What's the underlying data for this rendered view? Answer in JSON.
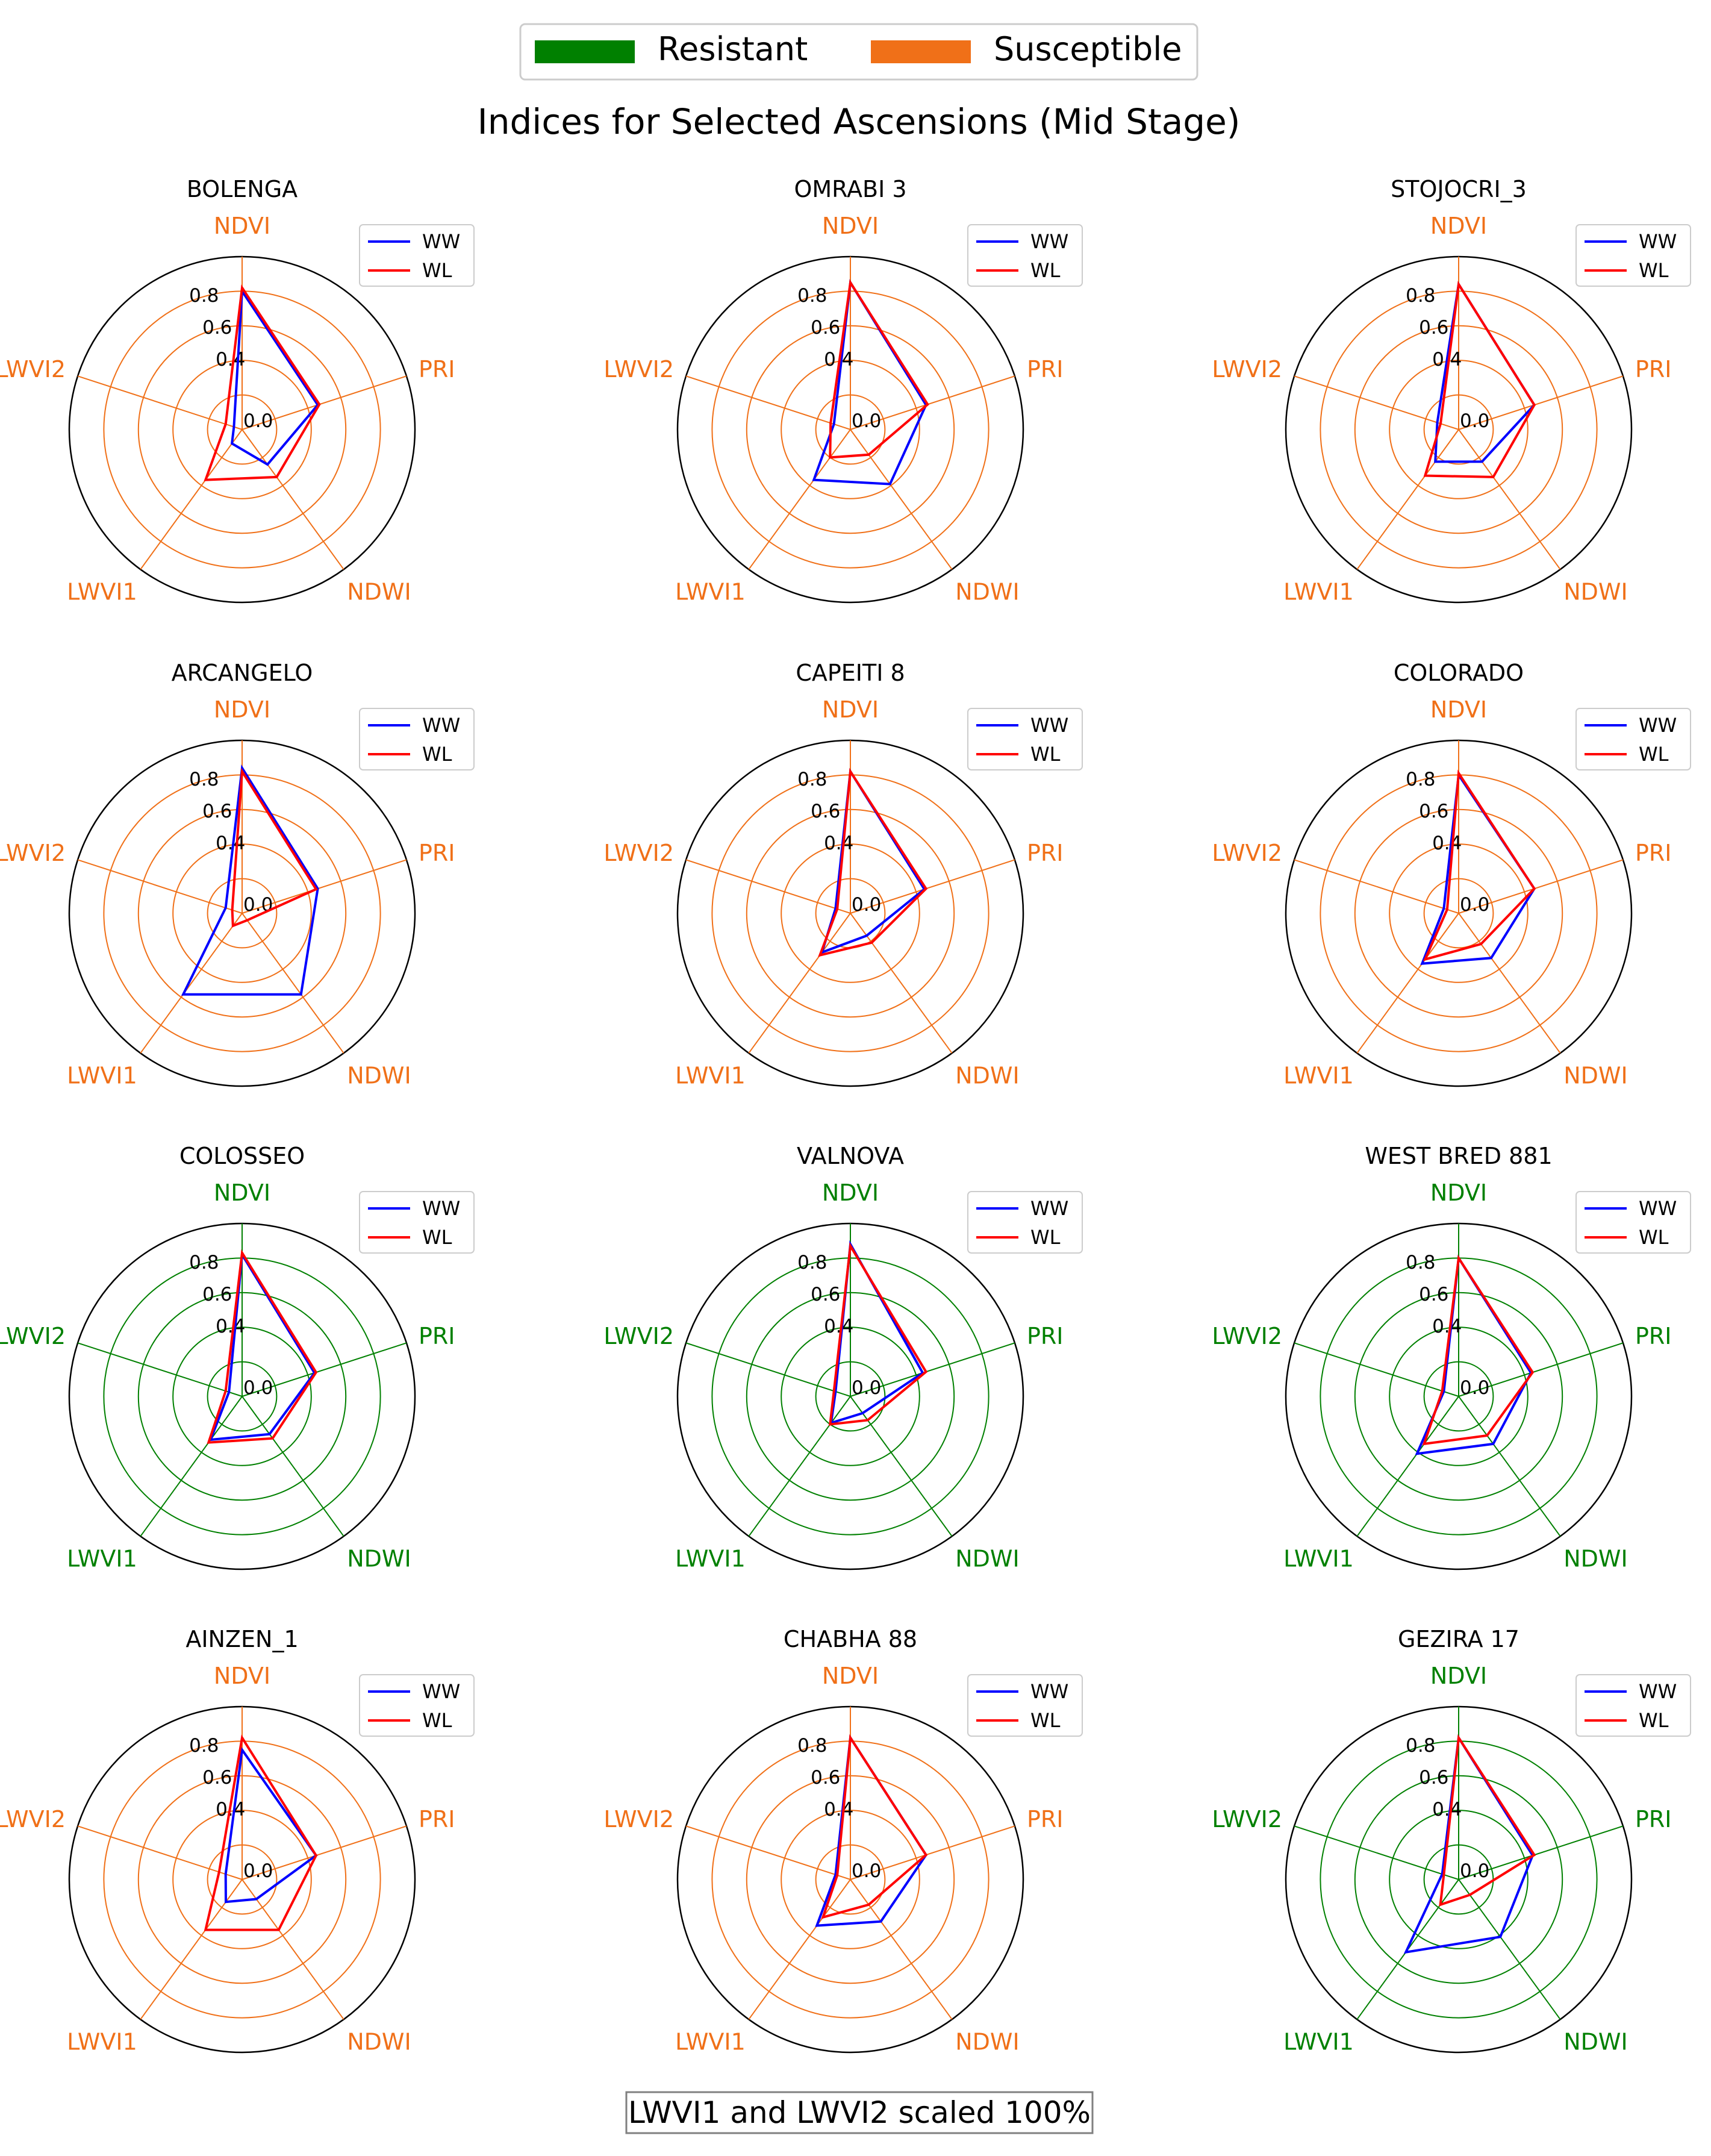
{
  "figure": {
    "title": "Indices for Selected Ascensions (Mid Stage)",
    "footnote": "LWVI1 and LWVI2 scaled 100%"
  },
  "legend": {
    "resistant_label": "Resistant",
    "susceptible_label": "Susceptible",
    "resistant_color": "#008000",
    "susceptible_color": "#f07018"
  },
  "series_style": {
    "WW": "#0000ff",
    "WL": "#ff0000"
  },
  "chart_data": {
    "type": "radar",
    "axes": [
      "NDVI",
      "PRI",
      "NDWI",
      "LWVI1",
      "LWVI2"
    ],
    "rlim": [
      0,
      1
    ],
    "radial_ticks": [
      0.0,
      0.4,
      0.6,
      0.8
    ],
    "rings": [
      0.2,
      0.4,
      0.6,
      0.8,
      1.0
    ],
    "series_names": [
      "WW",
      "WL"
    ],
    "panels": [
      {
        "title": "BOLENGA",
        "category": "susceptible",
        "series": [
          {
            "name": "WW",
            "values": [
              0.8,
              0.46,
              0.25,
              0.1,
              0.05
            ]
          },
          {
            "name": "WL",
            "values": [
              0.82,
              0.47,
              0.34,
              0.36,
              0.1
            ]
          }
        ]
      },
      {
        "title": "OMRABI 3",
        "category": "susceptible",
        "series": [
          {
            "name": "WW",
            "values": [
              0.85,
              0.46,
              0.39,
              0.36,
              0.1
            ]
          },
          {
            "name": "WL",
            "values": [
              0.85,
              0.47,
              0.18,
              0.2,
              0.12
            ]
          }
        ]
      },
      {
        "title": "STOJOCRI_3",
        "category": "susceptible",
        "series": [
          {
            "name": "WW",
            "values": [
              0.84,
              0.46,
              0.23,
              0.23,
              0.13
            ]
          },
          {
            "name": "WL",
            "values": [
              0.84,
              0.46,
              0.34,
              0.33,
              0.11
            ]
          }
        ]
      },
      {
        "title": "ARCANGELO",
        "category": "susceptible",
        "series": [
          {
            "name": "WW",
            "values": [
              0.84,
              0.46,
              0.58,
              0.58,
              0.1
            ]
          },
          {
            "name": "WL",
            "values": [
              0.82,
              0.45,
              0.05,
              0.09,
              0.06
            ]
          }
        ]
      },
      {
        "title": "CAPEITI 8",
        "category": "susceptible",
        "series": [
          {
            "name": "WW",
            "values": [
              0.82,
              0.45,
              0.16,
              0.28,
              0.09
            ]
          },
          {
            "name": "WL",
            "values": [
              0.82,
              0.46,
              0.21,
              0.3,
              0.08
            ]
          }
        ]
      },
      {
        "title": "COLORADO",
        "category": "susceptible",
        "series": [
          {
            "name": "WW",
            "values": [
              0.8,
              0.46,
              0.32,
              0.36,
              0.09
            ]
          },
          {
            "name": "WL",
            "values": [
              0.81,
              0.46,
              0.22,
              0.33,
              0.07
            ]
          }
        ]
      },
      {
        "title": "COLOSSEO",
        "category": "resistant",
        "series": [
          {
            "name": "WW",
            "values": [
              0.82,
              0.44,
              0.27,
              0.31,
              0.08
            ]
          },
          {
            "name": "WL",
            "values": [
              0.83,
              0.45,
              0.3,
              0.33,
              0.1
            ]
          }
        ]
      },
      {
        "title": "VALNOVA",
        "category": "resistant",
        "series": [
          {
            "name": "WW",
            "values": [
              0.88,
              0.44,
              0.12,
              0.19,
              0.09
            ]
          },
          {
            "name": "WL",
            "values": [
              0.87,
              0.46,
              0.17,
              0.2,
              0.1
            ]
          }
        ]
      },
      {
        "title": "WEST BRED 881",
        "category": "resistant",
        "series": [
          {
            "name": "WW",
            "values": [
              0.8,
              0.44,
              0.34,
              0.41,
              0.09
            ]
          },
          {
            "name": "WL",
            "values": [
              0.8,
              0.45,
              0.28,
              0.34,
              0.1
            ]
          }
        ]
      },
      {
        "title": "AINZEN_1",
        "category": "susceptible",
        "series": [
          {
            "name": "WW",
            "values": [
              0.75,
              0.45,
              0.14,
              0.16,
              0.1
            ]
          },
          {
            "name": "WL",
            "values": [
              0.82,
              0.45,
              0.36,
              0.36,
              0.14
            ]
          }
        ]
      },
      {
        "title": "CHABHA 88",
        "category": "susceptible",
        "series": [
          {
            "name": "WW",
            "values": [
              0.82,
              0.46,
              0.3,
              0.33,
              0.09
            ]
          },
          {
            "name": "WL",
            "values": [
              0.82,
              0.46,
              0.18,
              0.27,
              0.08
            ]
          }
        ]
      },
      {
        "title": "GEZIRA 17",
        "category": "resistant",
        "series": [
          {
            "name": "WW",
            "values": [
              0.82,
              0.45,
              0.41,
              0.52,
              0.1
            ]
          },
          {
            "name": "WL",
            "values": [
              0.82,
              0.46,
              0.11,
              0.18,
              0.09
            ]
          }
        ]
      }
    ]
  }
}
